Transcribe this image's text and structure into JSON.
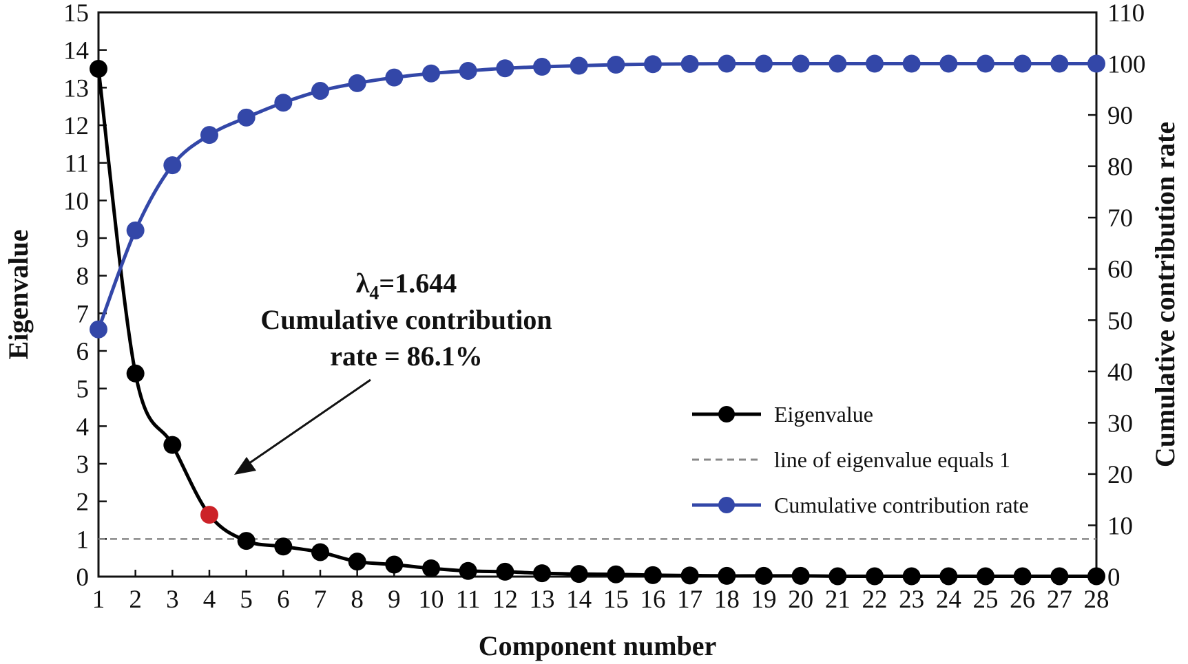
{
  "chart_data": {
    "type": "line",
    "x": [
      1,
      2,
      3,
      4,
      5,
      6,
      7,
      8,
      9,
      10,
      11,
      12,
      13,
      14,
      15,
      16,
      17,
      18,
      19,
      20,
      21,
      22,
      23,
      24,
      25,
      26,
      27,
      28
    ],
    "series": [
      {
        "name": "Eigenvalue",
        "axis": "left",
        "color": "#000000",
        "values": [
          13.5,
          5.4,
          3.5,
          1.644,
          0.95,
          0.8,
          0.65,
          0.4,
          0.32,
          0.22,
          0.15,
          0.13,
          0.09,
          0.07,
          0.06,
          0.04,
          0.03,
          0.02,
          0.02,
          0.02,
          0.01,
          0.01,
          0.01,
          0.01,
          0.01,
          0.01,
          0.01,
          0.01
        ]
      },
      {
        "name": "Cumulative contribution rate",
        "axis": "right",
        "color": "#3347a8",
        "values": [
          48.2,
          67.5,
          80.2,
          86.1,
          89.5,
          92.4,
          94.7,
          96.2,
          97.3,
          98.1,
          98.6,
          99.1,
          99.4,
          99.6,
          99.8,
          99.9,
          99.95,
          100,
          100,
          100,
          100,
          100,
          100,
          100,
          100,
          100,
          100,
          100
        ]
      }
    ],
    "reference_line": {
      "name": "line of eigenvalue equals 1",
      "value": 1,
      "color": "#888888",
      "style": "dashed"
    },
    "highlight": {
      "x": 4,
      "value": 1.644,
      "color": "#cc2228"
    },
    "annotation": {
      "symbol": "λ",
      "subscript": "4",
      "eq_value": "=1.644",
      "line2": "Cumulative contribution",
      "line3": "rate = 86.1%"
    },
    "xlabel": "Component number",
    "ylabel": "Eigenvalue",
    "y2label": "Cumulative contribution rate",
    "xlim": [
      1,
      28
    ],
    "ylim": [
      0,
      15
    ],
    "y2lim": [
      0,
      110
    ],
    "y_ticks": [
      0,
      1,
      2,
      3,
      4,
      5,
      6,
      7,
      8,
      9,
      10,
      11,
      12,
      13,
      14,
      15
    ],
    "y2_ticks": [
      0,
      10,
      20,
      30,
      40,
      50,
      60,
      70,
      80,
      90,
      100,
      110
    ],
    "legend_position": "center-right",
    "grid": false
  }
}
